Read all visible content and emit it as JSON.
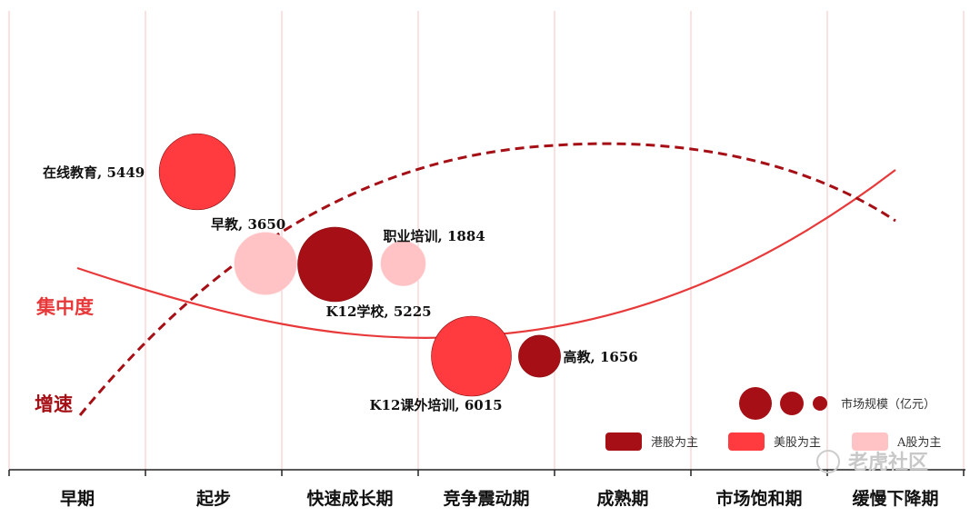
{
  "chart_data": {
    "type": "scatter",
    "subtype": "bubble",
    "stages": [
      "早期",
      "起步",
      "快速成长期",
      "竞争震动期",
      "成熟期",
      "市场饱和期",
      "缓慢下降期"
    ],
    "curves": [
      {
        "name": "集中度",
        "color": "#e8393a",
        "style": "solid"
      },
      {
        "name": "增速",
        "color": "#a50f15",
        "style": "dashed"
      }
    ],
    "bubbles": [
      {
        "name": "在线教育",
        "value": 5449,
        "category": "美股为主",
        "stage_pos": 1.38
      },
      {
        "name": "早教",
        "value": 3650,
        "category": "A股为主",
        "stage_pos": 1.88
      },
      {
        "name": "K12学校",
        "value": 5225,
        "category": "港股为主",
        "stage_pos": 2.39
      },
      {
        "name": "职业培训",
        "value": 1884,
        "category": "A股为主",
        "stage_pos": 2.89
      },
      {
        "name": "K12课外培训",
        "value": 6015,
        "category": "美股为主",
        "stage_pos": 3.39
      },
      {
        "name": "高教",
        "value": 1656,
        "category": "港股为主",
        "stage_pos": 3.89
      }
    ],
    "bubble_labels": [
      "在线教育, 5449",
      "早教, 3650",
      "K12学校, 5225",
      "职业培训, 1884",
      "K12课外培训, 6015",
      "高教, 1656"
    ],
    "legend": {
      "size_title": "市场规模（亿元）",
      "categories": [
        {
          "name": "港股为主",
          "color": "#a50f15"
        },
        {
          "name": "美股为主",
          "color": "#ff3b3f"
        },
        {
          "name": "A股为主",
          "color": "#ffc3c6"
        }
      ]
    },
    "grid": "vertical"
  },
  "watermark": {
    "text": "老虎社区"
  }
}
